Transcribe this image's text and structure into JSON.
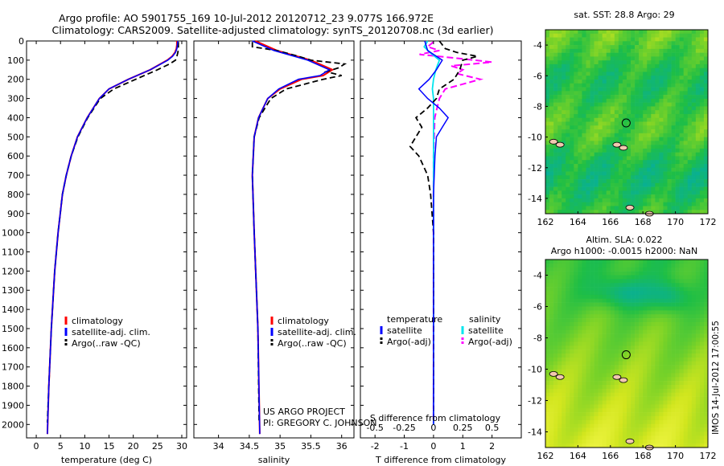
{
  "title": {
    "line1": "Argo profile: AO 5901755_169 10-Jul-2012 20120712_23 9.077S 166.972E",
    "line2": "Climatology: CARS2009. Satellite-adjusted climatology: synTS_20120708.nc (3d earlier)"
  },
  "credit": {
    "line1": "US ARGO PROJECT",
    "line2": "PI: GREGORY C. JOHNSON"
  },
  "stamp": "IMOS 14-Jul-2012 17:00:55",
  "colors": {
    "clim": "#ff0000",
    "sat": "#0000ff",
    "argo": "#000000",
    "sal_sat": "#00e5ee",
    "sal_argo": "#ff00ff"
  },
  "chart_data": [
    {
      "type": "line",
      "xlabel": "temperature (deg C)",
      "ylabel": "",
      "xlim": [
        -2,
        31
      ],
      "ylim": [
        2070,
        0
      ],
      "xticks": [
        0,
        5,
        10,
        15,
        20,
        25,
        30
      ],
      "yticks": [
        0,
        100,
        200,
        300,
        400,
        500,
        600,
        700,
        800,
        900,
        1000,
        1100,
        1200,
        1300,
        1400,
        1500,
        1600,
        1700,
        1800,
        1900,
        2000
      ],
      "legend": [
        "climatology",
        "satellite-adj. clim.",
        "Argo(..raw -QC)"
      ],
      "series": [
        {
          "name": "climatology",
          "depth": [
            0,
            20,
            40,
            60,
            80,
            100,
            150,
            200,
            250,
            300,
            400,
            500,
            600,
            700,
            800,
            1000,
            1200,
            1500,
            1800,
            2050
          ],
          "values": [
            29,
            29,
            28.9,
            28.6,
            28,
            27,
            23.5,
            19,
            15,
            13,
            10.5,
            8.5,
            7.2,
            6.2,
            5.4,
            4.5,
            3.8,
            3.1,
            2.6,
            2.3
          ]
        },
        {
          "name": "satellite-adj. clim.",
          "depth": [
            0,
            20,
            40,
            60,
            80,
            100,
            150,
            200,
            250,
            300,
            400,
            500,
            600,
            700,
            800,
            1000,
            1200,
            1500,
            1800,
            2050
          ],
          "values": [
            29.2,
            29.1,
            29,
            28.7,
            28.1,
            27.1,
            23.5,
            19,
            15,
            13,
            10.5,
            8.5,
            7.2,
            6.2,
            5.4,
            4.5,
            3.8,
            3.1,
            2.6,
            2.3
          ]
        },
        {
          "name": "Argo(..raw -QC)",
          "depth": [
            5,
            40,
            60,
            80,
            100,
            120,
            150,
            200,
            250,
            300,
            400,
            500,
            600,
            700,
            800,
            1000,
            1200,
            1500,
            1800,
            1990
          ],
          "values": [
            29.3,
            29.3,
            29.2,
            29,
            28.7,
            27.5,
            25,
            20.5,
            16,
            13.2,
            10.6,
            8.6,
            7.2,
            6.2,
            5.4,
            4.5,
            3.8,
            3.1,
            2.6,
            2.3
          ]
        }
      ]
    },
    {
      "type": "line",
      "xlabel": "salinity",
      "xlim": [
        33.6,
        36.2
      ],
      "ylim": [
        2070,
        0
      ],
      "xticks": [
        34,
        34.5,
        35,
        35.5,
        36
      ],
      "legend": [
        "climatology",
        "satellite-adj. clim.",
        "Argo(..raw -QC)"
      ],
      "series": [
        {
          "name": "climatology",
          "depth": [
            0,
            50,
            100,
            150,
            180,
            200,
            250,
            300,
            400,
            500,
            700,
            1000,
            1500,
            2050
          ],
          "values": [
            34.6,
            34.95,
            35.5,
            35.85,
            35.7,
            35.35,
            35,
            34.8,
            34.65,
            34.58,
            34.55,
            34.58,
            34.64,
            34.67
          ]
        },
        {
          "name": "satellite-adj. clim.",
          "depth": [
            0,
            50,
            100,
            150,
            180,
            200,
            250,
            300,
            400,
            500,
            700,
            1000,
            1500,
            2050
          ],
          "values": [
            34.55,
            34.9,
            35.45,
            35.8,
            35.65,
            35.3,
            34.98,
            34.8,
            34.65,
            34.58,
            34.55,
            34.58,
            34.64,
            34.67
          ]
        },
        {
          "name": "Argo(..raw -QC)",
          "depth": [
            5,
            30,
            50,
            80,
            100,
            120,
            140,
            160,
            180,
            200,
            250,
            300,
            400,
            500,
            700,
            1000,
            1500,
            1990
          ],
          "values": [
            34.55,
            34.55,
            34.95,
            35.3,
            35.5,
            36.05,
            35.95,
            35.75,
            36.0,
            35.7,
            35.1,
            34.85,
            34.66,
            34.58,
            34.55,
            34.58,
            34.64,
            34.66
          ]
        }
      ]
    },
    {
      "type": "line",
      "xlabel": "T difference from climatology",
      "toplabel": "S difference from climatology",
      "xlim": [
        -2.5,
        3
      ],
      "ylim": [
        2070,
        0
      ],
      "xticks": [
        -2,
        -1,
        0,
        1,
        2
      ],
      "sticks": [
        -0.5,
        -0.25,
        0,
        0.25,
        0.5
      ],
      "slim": [
        -0.625,
        0.75
      ],
      "legend_left_title": "temperature",
      "legend_right_title": "salinity",
      "legend_left": [
        "satellite",
        "Argo(-adj)"
      ],
      "legend_right": [
        "satellite",
        "Argo(-adj)"
      ],
      "series": [
        {
          "name": "satellite",
          "quantity": "T",
          "depth": [
            0,
            50,
            100,
            150,
            200,
            250,
            300,
            350,
            400,
            450,
            500,
            600,
            800,
            1200,
            1600,
            2000
          ],
          "values": [
            -0.3,
            -0.2,
            0.3,
            0.1,
            -0.15,
            -0.5,
            -0.2,
            0.2,
            0.5,
            0.3,
            0.1,
            0.05,
            0.0,
            0.0,
            0.0,
            0.0
          ]
        },
        {
          "name": "Argo(-adj)",
          "quantity": "T",
          "depth": [
            0,
            40,
            60,
            80,
            100,
            150,
            200,
            250,
            300,
            350,
            400,
            450,
            500,
            550,
            600,
            700,
            800,
            1000,
            1300,
            1600,
            1990
          ],
          "values": [
            0.2,
            0.4,
            0.8,
            1.5,
            1.0,
            0.9,
            0.7,
            0.2,
            0.1,
            -0.2,
            -0.6,
            -0.4,
            -0.6,
            -0.8,
            -0.5,
            -0.2,
            -0.1,
            0.0,
            0.0,
            0.0,
            0.0
          ]
        },
        {
          "name": "satellite",
          "quantity": "S",
          "depth": [
            0,
            30,
            60,
            100,
            150,
            200,
            250,
            300,
            400,
            600,
            1000,
            1500,
            2000
          ],
          "values": [
            -0.05,
            -0.08,
            -0.03,
            0.05,
            0.02,
            0.0,
            -0.01,
            0.0,
            0.0,
            0.0,
            0.0,
            0.0,
            0.0
          ]
        },
        {
          "name": "Argo(-adj)",
          "quantity": "S",
          "depth": [
            5,
            30,
            50,
            70,
            90,
            110,
            130,
            150,
            170,
            200,
            250,
            300,
            400,
            600,
            1000,
            1500,
            1990
          ],
          "values": [
            0.0,
            -0.05,
            0.05,
            -0.12,
            0.2,
            0.5,
            0.15,
            0.25,
            0.2,
            0.4,
            0.1,
            0.05,
            0.01,
            0.0,
            0.0,
            0.0,
            0.0
          ]
        }
      ]
    },
    {
      "type": "heatmap",
      "title": "sat. SST: 28.8 Argo: 29",
      "xlim": [
        162,
        172
      ],
      "ylim": [
        -15,
        -3
      ],
      "xticks": [
        162,
        164,
        166,
        168,
        170,
        172
      ],
      "yticks": [
        -4,
        -6,
        -8,
        -10,
        -12,
        -14
      ],
      "marker": {
        "lon": 166.97,
        "lat": -9.08
      }
    },
    {
      "type": "heatmap",
      "title": "Altim. SLA: 0.022",
      "subtitle": "Argo h1000: -0.0015 h2000: NaN",
      "xlim": [
        162,
        172
      ],
      "ylim": [
        -15,
        -3
      ],
      "xticks": [
        162,
        164,
        166,
        168,
        170,
        172
      ],
      "yticks": [
        -4,
        -6,
        -8,
        -10,
        -12,
        -14
      ],
      "marker": {
        "lon": 166.97,
        "lat": -9.08
      }
    }
  ]
}
